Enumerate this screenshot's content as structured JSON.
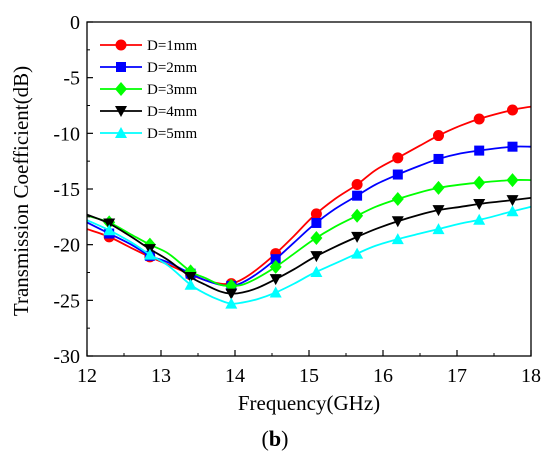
{
  "chart_data": {
    "type": "line",
    "xlabel": "Frequency(GHz)",
    "ylabel": "Transmission Coefficient(dB)",
    "xlim": [
      12,
      18
    ],
    "ylim": [
      -30,
      0
    ],
    "xticks": [
      12,
      13,
      14,
      15,
      16,
      17,
      18
    ],
    "yticks": [
      0,
      -5,
      -10,
      -15,
      -20,
      -25,
      -30
    ],
    "grid": false,
    "legend_position": "top-left",
    "series": [
      {
        "name": "D=1mm",
        "color": "#ff0000",
        "marker": "circle",
        "x": [
          12.0,
          12.3,
          12.6,
          12.85,
          13.1,
          13.4,
          13.6,
          13.8,
          13.95,
          14.1,
          14.3,
          14.55,
          14.8,
          15.05,
          15.35,
          15.65,
          15.9,
          16.2,
          16.5,
          16.75,
          17.05,
          17.35,
          17.75,
          18.0
        ],
        "y": [
          -18.6,
          -19.3,
          -20.3,
          -21.1,
          -21.8,
          -22.7,
          -23.2,
          -23.5,
          -23.5,
          -23.1,
          -22.2,
          -20.8,
          -19.2,
          -17.5,
          -15.9,
          -14.6,
          -13.3,
          -12.2,
          -11.1,
          -10.2,
          -9.3,
          -8.6,
          -7.9,
          -7.6
        ],
        "markers_x": [
          12.3,
          12.85,
          13.4,
          13.95,
          14.55,
          15.1,
          15.65,
          16.2,
          16.75,
          17.3,
          17.75
        ]
      },
      {
        "name": "D=2mm",
        "color": "#0000ff",
        "marker": "square",
        "x": [
          12.0,
          12.3,
          12.6,
          12.85,
          13.1,
          13.4,
          13.6,
          13.8,
          13.95,
          14.1,
          14.3,
          14.55,
          14.8,
          15.05,
          15.35,
          15.65,
          15.9,
          16.2,
          16.5,
          16.75,
          17.05,
          17.35,
          17.75,
          18.0
        ],
        "y": [
          -18.0,
          -19.0,
          -20.0,
          -21.0,
          -21.6,
          -22.6,
          -23.2,
          -23.6,
          -23.7,
          -23.4,
          -22.6,
          -21.3,
          -19.8,
          -18.3,
          -16.8,
          -15.6,
          -14.6,
          -13.7,
          -12.9,
          -12.3,
          -11.8,
          -11.5,
          -11.2,
          -11.2
        ],
        "markers_x": [
          12.3,
          12.85,
          13.4,
          13.95,
          14.55,
          15.1,
          15.65,
          16.2,
          16.75,
          17.3,
          17.75
        ]
      },
      {
        "name": "D=3mm",
        "color": "#00ff00",
        "marker": "diamond",
        "x": [
          12.0,
          12.3,
          12.6,
          12.85,
          13.1,
          13.4,
          13.6,
          13.8,
          13.95,
          14.1,
          14.3,
          14.55,
          14.8,
          15.05,
          15.35,
          15.65,
          15.9,
          16.2,
          16.5,
          16.75,
          17.05,
          17.35,
          17.75,
          18.0
        ],
        "y": [
          -17.4,
          -18.0,
          -19.1,
          -20.0,
          -20.8,
          -22.4,
          -23.0,
          -23.6,
          -23.7,
          -23.6,
          -23.0,
          -22.0,
          -20.8,
          -19.6,
          -18.4,
          -17.4,
          -16.6,
          -15.9,
          -15.3,
          -14.9,
          -14.6,
          -14.4,
          -14.2,
          -14.2
        ],
        "markers_x": [
          12.3,
          12.85,
          13.4,
          13.95,
          14.55,
          15.1,
          15.65,
          16.2,
          16.75,
          17.3,
          17.75
        ]
      },
      {
        "name": "D=4mm",
        "color": "#000000",
        "marker": "triangle-down",
        "x": [
          12.0,
          12.3,
          12.6,
          12.85,
          13.1,
          13.4,
          13.6,
          13.8,
          13.95,
          14.1,
          14.3,
          14.55,
          14.8,
          15.05,
          15.35,
          15.65,
          15.9,
          16.2,
          16.5,
          16.75,
          17.05,
          17.35,
          17.75,
          18.0
        ],
        "y": [
          -17.3,
          -18.1,
          -19.3,
          -20.4,
          -21.4,
          -22.9,
          -23.6,
          -24.2,
          -24.4,
          -24.3,
          -23.9,
          -23.1,
          -22.2,
          -21.2,
          -20.2,
          -19.3,
          -18.6,
          -17.9,
          -17.3,
          -16.9,
          -16.6,
          -16.3,
          -16.0,
          -15.8
        ],
        "markers_x": [
          12.3,
          12.85,
          13.4,
          13.95,
          14.55,
          15.1,
          15.65,
          16.2,
          16.75,
          17.3,
          17.75
        ]
      },
      {
        "name": "D=5mm",
        "color": "#00ffff",
        "marker": "triangle-up",
        "x": [
          12.0,
          12.3,
          12.6,
          12.85,
          13.1,
          13.4,
          13.6,
          13.8,
          13.95,
          14.1,
          14.3,
          14.55,
          14.8,
          15.05,
          15.35,
          15.65,
          15.9,
          16.2,
          16.5,
          16.75,
          17.05,
          17.35,
          17.75,
          18.0
        ],
        "y": [
          -17.8,
          -18.7,
          -19.8,
          -20.9,
          -21.9,
          -23.6,
          -24.4,
          -25.0,
          -25.3,
          -25.2,
          -24.9,
          -24.3,
          -23.5,
          -22.6,
          -21.7,
          -20.8,
          -20.1,
          -19.5,
          -19.0,
          -18.6,
          -18.1,
          -17.7,
          -17.0,
          -16.6
        ],
        "markers_x": [
          12.3,
          12.85,
          13.4,
          13.95,
          14.55,
          15.1,
          15.65,
          16.2,
          16.75,
          17.3,
          17.75
        ]
      }
    ]
  },
  "panel_label": "b"
}
